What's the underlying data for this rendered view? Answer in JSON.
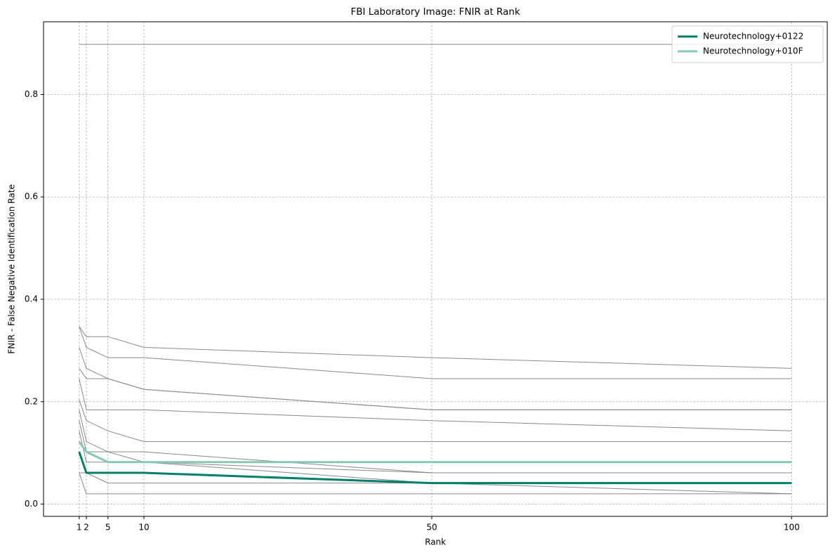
{
  "chart_data": {
    "type": "line",
    "title": "FBI Laboratory Image: FNIR at Rank",
    "x_label": "Rank",
    "y_label": "FNIR - False Negative Identification Rate",
    "x": [
      1,
      2,
      5,
      10,
      50,
      100
    ],
    "xlim": [
      -3.95,
      104.95
    ],
    "xticks": [
      1,
      2,
      5,
      10,
      50,
      100
    ],
    "ylim": [
      -0.024,
      0.942
    ],
    "yticks": [
      {
        "value": 0,
        "label": "0.0"
      },
      0.2,
      0.4,
      0.6,
      0.8
    ],
    "grid": true,
    "legend": "upper-right",
    "series": [
      {
        "color": "#888888",
        "linewidth": 1,
        "values": [
          0.898,
          0.898,
          0.898,
          0.898,
          0.898,
          0.898
        ]
      },
      {
        "color": "#888888",
        "linewidth": 1,
        "values": [
          0.347,
          0.327,
          0.327,
          0.306,
          0.286,
          0.265
        ]
      },
      {
        "color": "#888888",
        "linewidth": 1,
        "values": [
          0.347,
          0.306,
          0.286,
          0.286,
          0.245,
          0.245
        ]
      },
      {
        "color": "#888888",
        "linewidth": 1,
        "values": [
          0.306,
          0.265,
          0.245,
          0.224,
          0.184,
          0.184
        ]
      },
      {
        "color": "#888888",
        "linewidth": 1,
        "values": [
          0.265,
          0.245,
          0.245,
          0.224,
          0.184,
          0.184
        ]
      },
      {
        "color": "#888888",
        "linewidth": 1,
        "values": [
          0.245,
          0.184,
          0.184,
          0.184,
          0.163,
          0.143
        ]
      },
      {
        "color": "#888888",
        "linewidth": 1,
        "values": [
          0.204,
          0.163,
          0.143,
          0.122,
          0.122,
          0.122
        ]
      },
      {
        "color": "#888888",
        "linewidth": 1,
        "values": [
          0.184,
          0.122,
          0.102,
          0.102,
          0.061,
          0.061
        ]
      },
      {
        "color": "#888888",
        "linewidth": 1,
        "values": [
          0.163,
          0.102,
          0.102,
          0.082,
          0.061,
          0.061
        ]
      },
      {
        "color": "#888888",
        "linewidth": 1,
        "values": [
          0.143,
          0.082,
          0.082,
          0.082,
          0.041,
          0.02
        ]
      },
      {
        "color": "#888888",
        "linewidth": 1,
        "values": [
          0.061,
          0.061,
          0.041,
          0.041,
          0.041,
          0.041
        ]
      },
      {
        "color": "#888888",
        "linewidth": 1,
        "values": [
          0.061,
          0.02,
          0.02,
          0.02,
          0.02,
          0.02
        ]
      },
      {
        "name": "Neurotechnology+0122",
        "color": "#00806b",
        "linewidth": 3,
        "values": [
          0.102,
          0.061,
          0.061,
          0.061,
          0.041,
          0.041
        ]
      },
      {
        "name": "Neurotechnology+010F",
        "color": "#86c8b8",
        "linewidth": 3,
        "values": [
          0.122,
          0.102,
          0.082,
          0.082,
          0.082,
          0.082
        ]
      }
    ]
  }
}
